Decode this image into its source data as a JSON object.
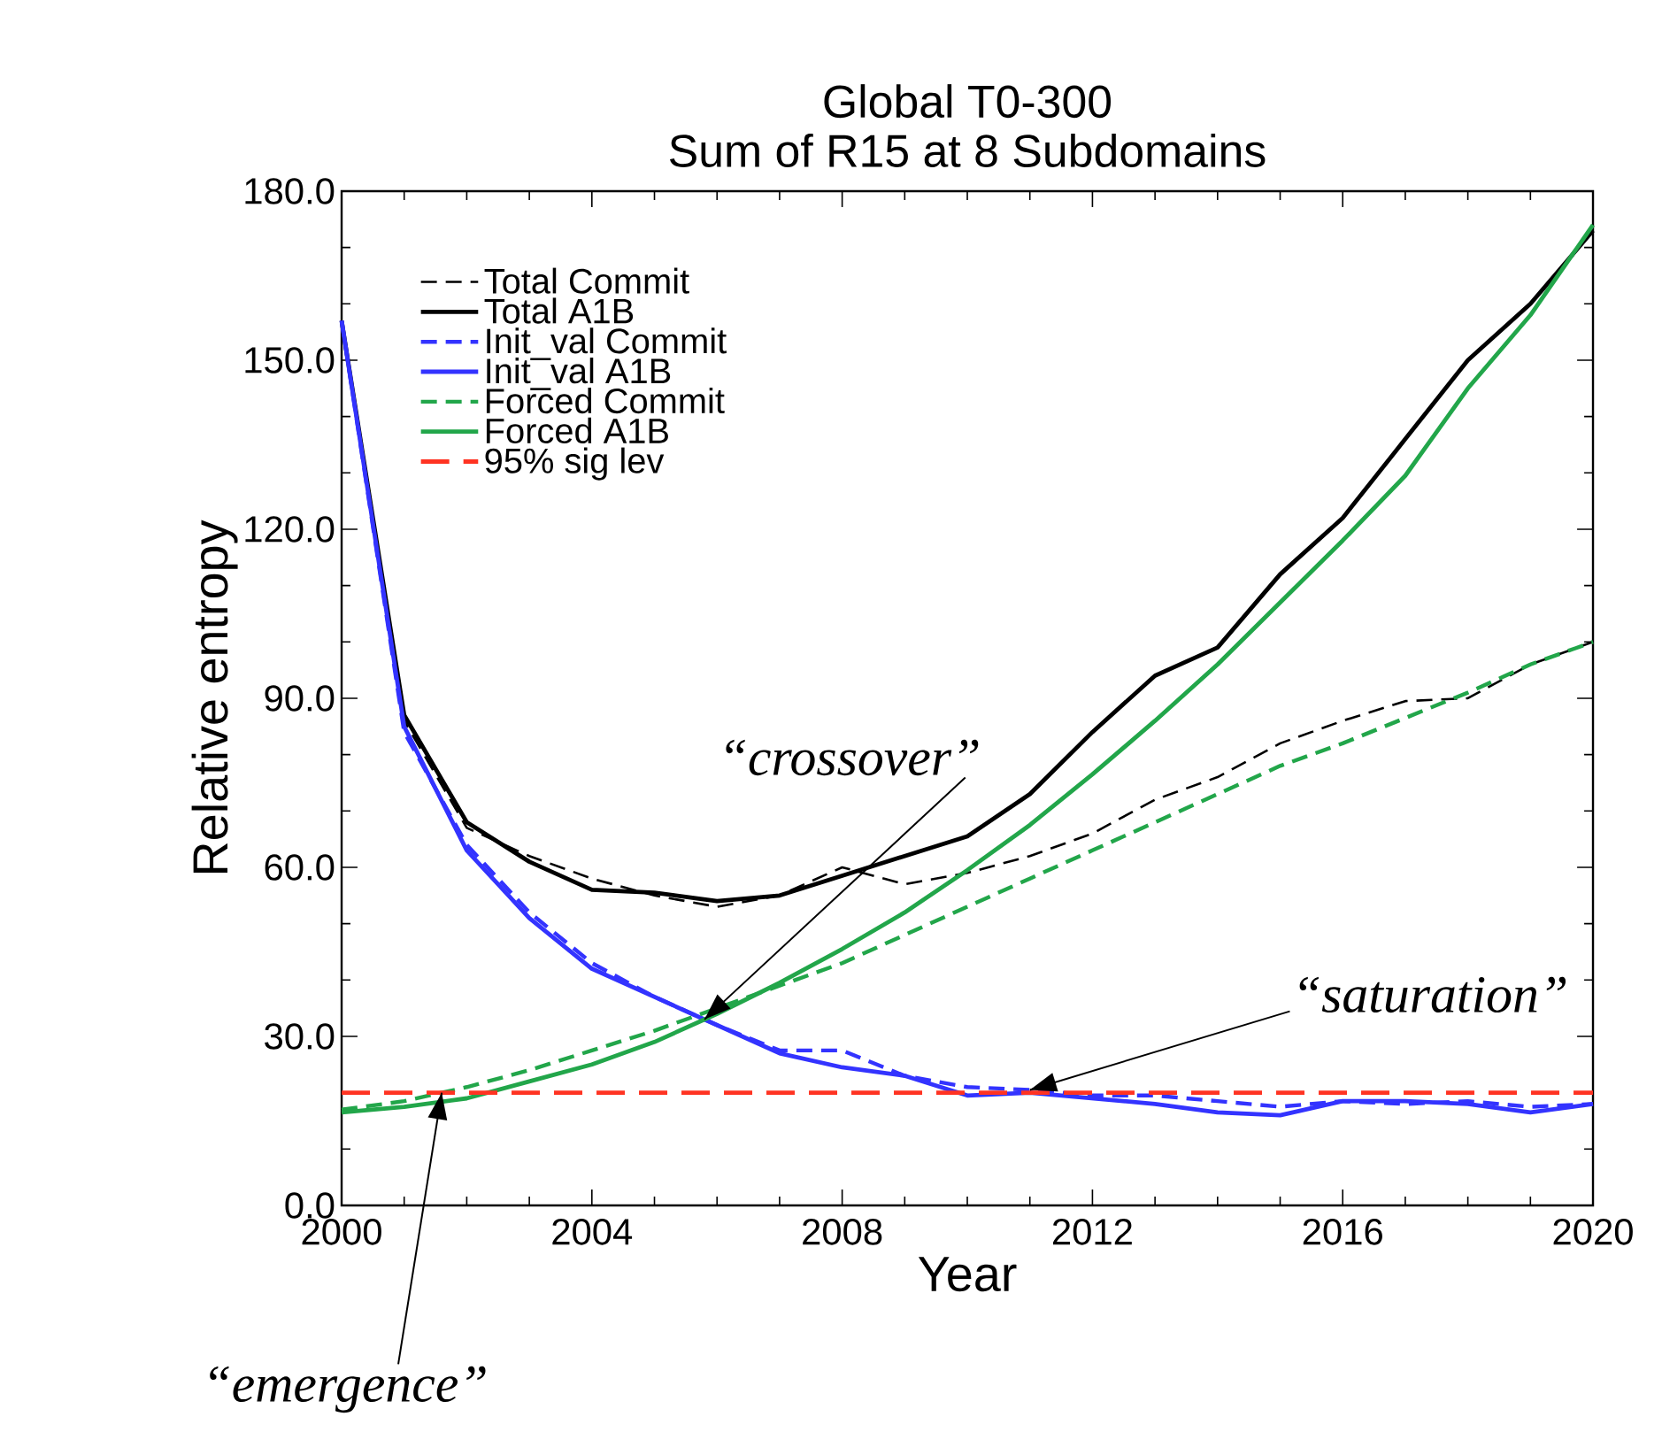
{
  "chart_data": {
    "type": "line",
    "title": "Global T0-300",
    "subtitle": "Sum of R15 at 8 Subdomains",
    "xlabel": "Year",
    "ylabel": "Relative entropy",
    "x": [
      2000,
      2001,
      2002,
      2003,
      2004,
      2005,
      2006,
      2007,
      2008,
      2009,
      2010,
      2011,
      2012,
      2013,
      2014,
      2015,
      2016,
      2017,
      2018,
      2019,
      2020
    ],
    "series": [
      {
        "name": "Total Commit",
        "color": "#000000",
        "line_style": "dashed",
        "values": [
          157,
          86,
          67,
          62,
          58,
          55,
          53,
          55,
          60,
          57,
          59,
          62,
          66,
          72,
          76,
          82,
          86,
          89.5,
          90,
          96,
          100
        ]
      },
      {
        "name": "Total A1B",
        "color": "#000000",
        "line_style": "solid",
        "values": [
          157,
          87,
          68,
          61,
          56,
          55.5,
          54,
          55,
          58.5,
          62,
          65.5,
          73,
          84,
          94,
          99,
          112,
          122,
          136,
          150,
          160,
          173
        ]
      },
      {
        "name": "Init_val Commit",
        "color": "#3333ff",
        "line_style": "dashed",
        "values": [
          157,
          84,
          64,
          52,
          43,
          37,
          32,
          27.5,
          27.5,
          23,
          21,
          20.5,
          19.5,
          19.5,
          18.5,
          17.5,
          18.5,
          18,
          18.5,
          17.5,
          18
        ]
      },
      {
        "name": "Init_val A1B",
        "color": "#3333ff",
        "line_style": "solid",
        "values": [
          157,
          85,
          63,
          51,
          42,
          37,
          32,
          27,
          24.5,
          23,
          19.5,
          20,
          19,
          18,
          16.5,
          16,
          18.5,
          18.5,
          18,
          16.5,
          18
        ]
      },
      {
        "name": "Forced Commit",
        "color": "#22a64a",
        "line_style": "dashed",
        "values": [
          17,
          18.5,
          21,
          24,
          27.5,
          31,
          35,
          39,
          43,
          48,
          53,
          58,
          63,
          68,
          73,
          78,
          82,
          86.5,
          91,
          96,
          100
        ]
      },
      {
        "name": "Forced A1B",
        "color": "#22a64a",
        "line_style": "solid",
        "values": [
          16.5,
          17.5,
          19,
          22,
          25,
          29,
          34,
          39.5,
          45.5,
          52,
          59.5,
          67.5,
          76.5,
          86,
          96,
          107,
          118,
          129.5,
          145,
          158,
          174
        ]
      }
    ],
    "ref_lines": [
      {
        "axis": "y",
        "value": 20,
        "label": "95% sig lev",
        "color": "#ff3322",
        "line_style": "dashed"
      }
    ],
    "annotations": [
      {
        "text": "“crossover”",
        "x": 2005.8,
        "y": 33
      },
      {
        "text": "“saturation”",
        "x": 2011,
        "y": 20.5
      },
      {
        "text": "“emergence”",
        "x": 2001.6,
        "y": 20
      }
    ],
    "xlim": [
      2000,
      2020
    ],
    "ylim": [
      0,
      180
    ],
    "xticks": [
      2000,
      2004,
      2008,
      2012,
      2016,
      2020
    ],
    "yticks": [
      {
        "value": 0,
        "label": "0.0"
      },
      {
        "value": 30,
        "label": "30.0"
      },
      {
        "value": 60,
        "label": "60.0"
      },
      {
        "value": 90,
        "label": "90.0"
      },
      {
        "value": 120,
        "label": "120.0"
      },
      {
        "value": 150,
        "label": "150.0"
      },
      {
        "value": 180,
        "label": "180.0"
      }
    ],
    "grid": false,
    "legend": "top left",
    "marker": "none"
  }
}
